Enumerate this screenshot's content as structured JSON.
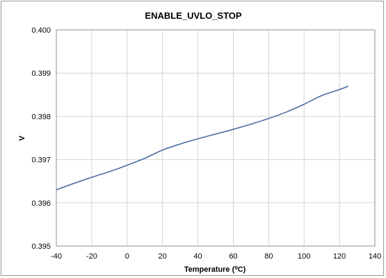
{
  "chart_data": {
    "type": "line",
    "title": "ENABLE_UVLO_STOP",
    "xlabel": "Temperature (⁰C)",
    "ylabel": "V",
    "xlim": [
      -40,
      140
    ],
    "ylim": [
      0.395,
      0.4
    ],
    "x_ticks": [
      "-40",
      "-20",
      "0",
      "20",
      "40",
      "60",
      "80",
      "100",
      "120",
      "140"
    ],
    "y_ticks": [
      "0.395",
      "0.396",
      "0.397",
      "0.398",
      "0.399",
      "0.400"
    ],
    "grid": true,
    "legend": "none",
    "series": [
      {
        "color": "#4a6f9e",
        "x": [
          -40,
          -30,
          -20,
          -10,
          0,
          10,
          20,
          30,
          40,
          50,
          60,
          70,
          80,
          90,
          100,
          110,
          120,
          125
        ],
        "y": [
          0.3963,
          0.39645,
          0.39659,
          0.39672,
          0.39687,
          0.39703,
          0.39722,
          0.39736,
          0.39748,
          0.39759,
          0.3977,
          0.39782,
          0.39795,
          0.3981,
          0.39828,
          0.39848,
          0.39862,
          0.3987
        ]
      }
    ]
  }
}
